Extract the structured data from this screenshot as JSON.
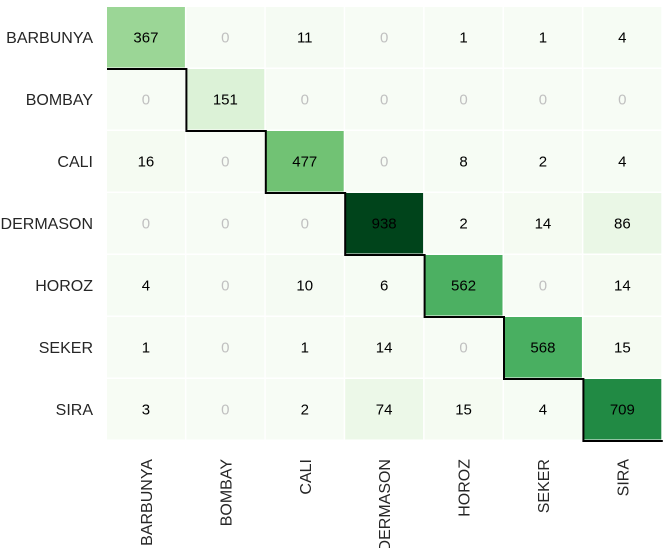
{
  "chart_data": {
    "type": "heatmap",
    "row_labels": [
      "BARBUNYA",
      "BOMBAY",
      "CALI",
      "DERMASON",
      "HOROZ",
      "SEKER",
      "SIRA"
    ],
    "col_labels": [
      "BARBUNYA",
      "BOMBAY",
      "CALI",
      "DERMASON",
      "HOROZ",
      "SEKER",
      "SIRA"
    ],
    "values": [
      [
        367,
        0,
        11,
        0,
        1,
        1,
        4
      ],
      [
        0,
        151,
        0,
        0,
        0,
        0,
        0
      ],
      [
        16,
        0,
        477,
        0,
        8,
        2,
        4
      ],
      [
        0,
        0,
        0,
        938,
        2,
        14,
        86
      ],
      [
        4,
        0,
        10,
        6,
        562,
        0,
        14
      ],
      [
        1,
        0,
        1,
        14,
        0,
        568,
        15
      ],
      [
        3,
        0,
        2,
        74,
        15,
        4,
        709
      ]
    ],
    "vmin": 0,
    "vmax": 938,
    "colormap": "Greens",
    "colorbar": false,
    "diagonal_outline": true,
    "zero_text_color": "#c0c0c0",
    "text_color": "#000000",
    "outline_color": "#000000"
  }
}
